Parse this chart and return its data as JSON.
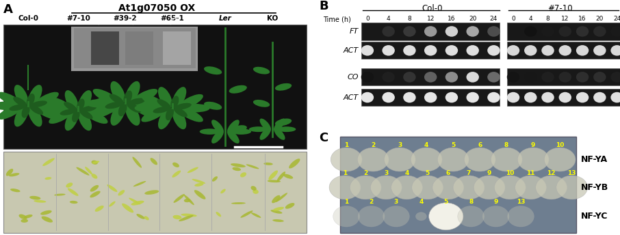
{
  "figsize": [
    9.06,
    3.44
  ],
  "dpi": 100,
  "bg_color": "#ffffff",
  "panel_A": {
    "label": "A",
    "title": "At1g07050 OX",
    "col_labels": [
      "Col-0",
      "#7-10",
      "#39-2",
      "#65-1",
      "Ler",
      "KO"
    ],
    "plant_photo_bg": "#111111",
    "seedling_photo_bg": "#d0d0b8",
    "blot_bg": "#aaaaaa",
    "blot_bands": [
      0.85,
      0.6,
      0.42
    ],
    "blot_labels": [
      "#7-10",
      "#39-2",
      "#65-1"
    ],
    "scale_bar_color": "#ffffff"
  },
  "panel_B": {
    "label": "B",
    "group_labels": [
      "Col-0",
      "#7-10"
    ],
    "time_label": "Time (h)",
    "time_points": [
      "0",
      "4",
      "8",
      "12",
      "16",
      "20",
      "24"
    ],
    "gene_labels": [
      "FT",
      "ACT",
      "CO",
      "ACT"
    ],
    "gel_bg": "#1a1a1a",
    "gel_bg2": "#222222",
    "band_color_FT_col0": [
      0.0,
      0.18,
      0.22,
      0.6,
      0.82,
      0.65,
      0.3
    ],
    "band_color_ACT_col0": [
      0.88,
      0.88,
      0.88,
      0.88,
      0.88,
      0.88,
      0.88
    ],
    "band_color_CO_col0": [
      0.08,
      0.12,
      0.2,
      0.38,
      0.55,
      0.85,
      0.42
    ],
    "band_color_ACT2_col0": [
      0.9,
      0.9,
      0.9,
      0.9,
      0.9,
      0.9,
      0.9
    ],
    "band_color_FT_710": [
      0.0,
      0.07,
      0.1,
      0.14,
      0.18,
      0.16,
      0.1
    ],
    "band_color_ACT_710": [
      0.85,
      0.85,
      0.85,
      0.85,
      0.85,
      0.85,
      0.85
    ],
    "band_color_CO_710": [
      0.08,
      0.09,
      0.12,
      0.15,
      0.18,
      0.18,
      0.12
    ],
    "band_color_ACT2_710": [
      0.88,
      0.88,
      0.88,
      0.88,
      0.88,
      0.88,
      0.88
    ]
  },
  "panel_C": {
    "label": "C",
    "plate_bg": "#6e7e90",
    "plate_edge": "#555566",
    "row_labels": [
      "NF-YA",
      "NF-YB",
      "NF-YC"
    ],
    "row_numbers": [
      [
        "1",
        "2",
        "3",
        "4",
        "5",
        "6",
        "8",
        "9",
        "10"
      ],
      [
        "1",
        "2",
        "3",
        "4",
        "5",
        "6",
        "7",
        "9",
        "10",
        "11",
        "12",
        "13"
      ],
      [
        "1",
        "2",
        "3",
        "4",
        "5",
        "8",
        "9",
        "13"
      ]
    ],
    "number_color": "#ffff00",
    "colony_color": "#c8c8b5",
    "colony_alpha": 0.75,
    "colony_strong_color": "#f2f1e8",
    "colony_strong_alpha": 1.0,
    "yeast_small_color": "#a8a898",
    "yeast_small_alpha": 0.5
  }
}
